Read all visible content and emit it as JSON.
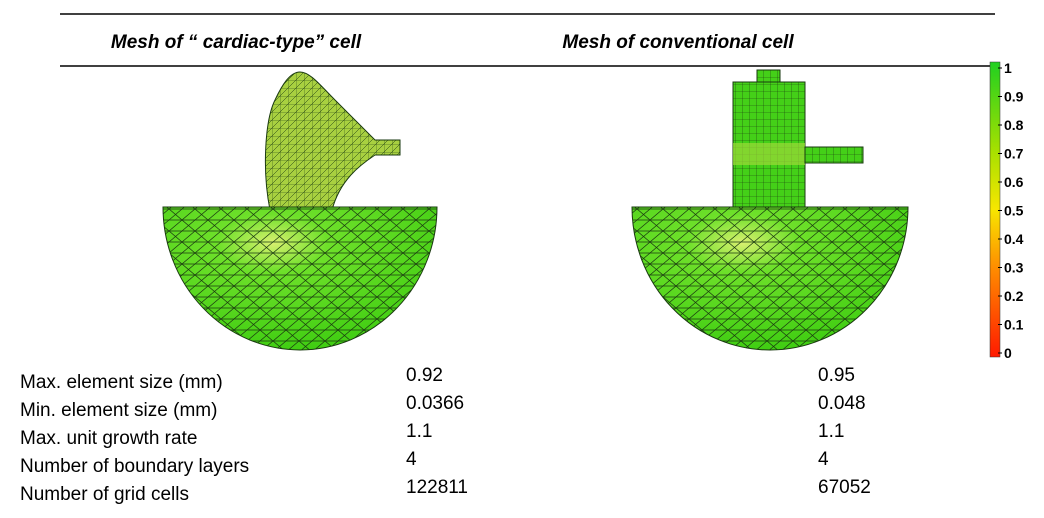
{
  "header": {
    "titles": [
      "Mesh of “ cardiac-type” cell",
      "Mesh of conventional cell"
    ]
  },
  "colorbar": {
    "labels": [
      "1",
      "0.9",
      "0.8",
      "0.7",
      "0.6",
      "0.5",
      "0.4",
      "0.3",
      "0.2",
      "0.1",
      "0"
    ]
  },
  "table": {
    "rows": [
      [
        "Max. element size (mm)",
        "0.92",
        "0.95"
      ],
      [
        "Min. element size (mm)",
        "0.0366",
        "0.048"
      ],
      [
        "Max. unit growth rate",
        "1.1",
        "1.1"
      ],
      [
        "Number of boundary layers",
        "4",
        "4"
      ],
      [
        "Number of grid cells",
        "122811",
        "67052"
      ]
    ]
  }
}
